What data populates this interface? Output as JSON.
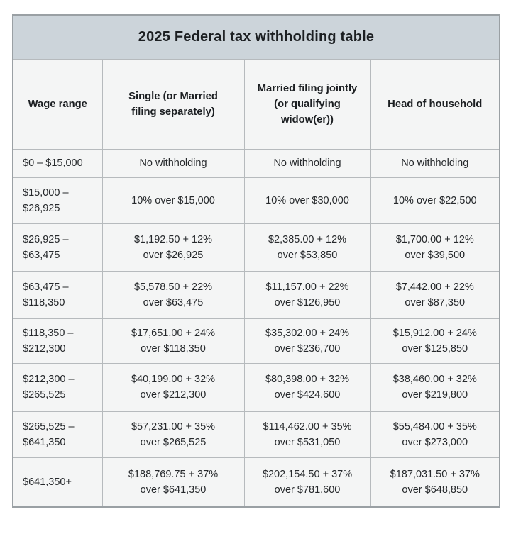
{
  "table": {
    "title": "2025 Federal tax withholding table",
    "colors": {
      "page_bg": "#ffffff",
      "title_bg": "#ccd4da",
      "cell_bg": "#f4f5f5",
      "border_outer": "#9aa0a4",
      "border_inner": "#b6babd",
      "text": "#26292c"
    },
    "columns": [
      {
        "label": "Wage range"
      },
      {
        "label": "Single (or Married\nfiling separately)"
      },
      {
        "label": "Married filing jointly\n(or qualifying\nwidow(er))"
      },
      {
        "label": "Head of household"
      }
    ],
    "rows": [
      {
        "cells": [
          "$0 – $15,000",
          "No withholding",
          "No withholding",
          "No withholding"
        ]
      },
      {
        "cells": [
          "$15,000 –\n$26,925",
          "10% over $15,000",
          "10% over $30,000",
          "10% over $22,500"
        ]
      },
      {
        "cells": [
          "$26,925 –\n$63,475",
          "$1,192.50 + 12%\nover $26,925",
          "$2,385.00 + 12%\nover $53,850",
          "$1,700.00 + 12%\nover $39,500"
        ]
      },
      {
        "cells": [
          "$63,475 –\n$118,350",
          "$5,578.50 + 22%\nover $63,475",
          "$11,157.00 + 22%\nover $126,950",
          "$7,442.00 + 22%\nover $87,350"
        ]
      },
      {
        "cells": [
          "$118,350 –\n$212,300",
          "$17,651.00 + 24%\nover $118,350",
          "$35,302.00 + 24%\nover $236,700",
          "$15,912.00 + 24%\nover $125,850"
        ]
      },
      {
        "cells": [
          "$212,300 –\n$265,525",
          "$40,199.00 + 32%\nover $212,300",
          "$80,398.00 + 32%\nover $424,600",
          "$38,460.00 + 32%\nover $219,800"
        ]
      },
      {
        "cells": [
          "$265,525 –\n$641,350",
          "$57,231.00 + 35%\nover $265,525",
          "$114,462.00 + 35%\nover $531,050",
          "$55,484.00 + 35%\nover $273,000"
        ]
      },
      {
        "cells": [
          "$641,350+",
          "$188,769.75 + 37%\nover $641,350",
          "$202,154.50 + 37%\nover $781,600",
          "$187,031.50 + 37%\nover $648,850"
        ]
      }
    ]
  }
}
